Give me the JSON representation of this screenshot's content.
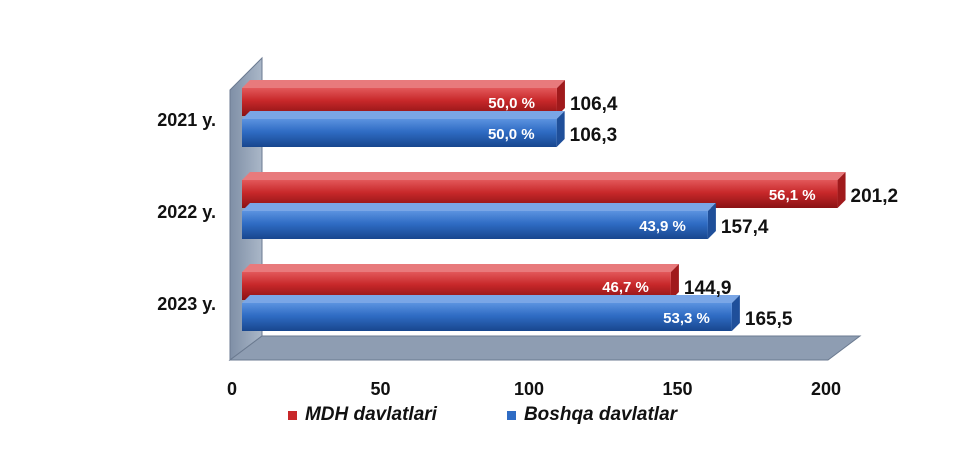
{
  "chart_data": {
    "type": "bar",
    "orientation": "horizontal",
    "categories": [
      "2021 y.",
      "2022 y.",
      "2023 y."
    ],
    "series": [
      {
        "name": "MDH davlatlari",
        "color": "#c8282a",
        "values": [
          106.4,
          201.2,
          144.9
        ],
        "value_labels": [
          "106,4",
          "201,2",
          "144,9"
        ],
        "share_labels": [
          "50,0 %",
          "56,1 %",
          "46,7 %"
        ]
      },
      {
        "name": "Boshqa davlatlar",
        "color": "#2f6cc4",
        "values": [
          106.3,
          157.4,
          165.5
        ],
        "value_labels": [
          "106,3",
          "157,4",
          "165,5"
        ],
        "share_labels": [
          "50,0 %",
          "43,9 %",
          "53,3 %"
        ]
      }
    ],
    "x_ticks": [
      "0",
      "50",
      "100",
      "150",
      "200"
    ],
    "xlim": [
      0,
      200
    ],
    "grid": false,
    "legend_position": "bottom"
  }
}
